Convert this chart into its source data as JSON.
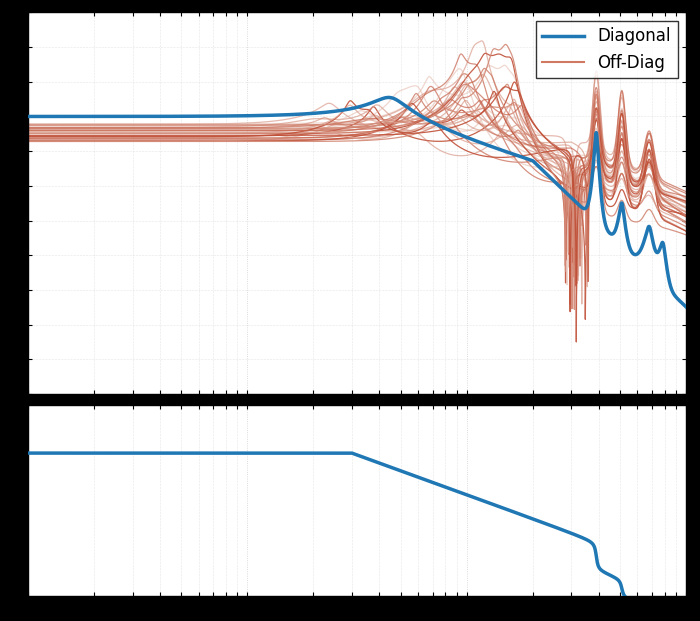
{
  "freq_min": 1,
  "freq_max": 1000,
  "diag_color": "#1f77b4",
  "offdiag_color_dark": "#c0503a",
  "offdiag_color_light": "#e8b8a8",
  "diag_linewidth": 2.5,
  "offdiag_linewidth": 0.9,
  "legend_fontsize": 12,
  "n_offdiag": 30,
  "fig_bg": "#000000",
  "ax_bg": "#ffffff",
  "grid_color": "#d0d0d0"
}
